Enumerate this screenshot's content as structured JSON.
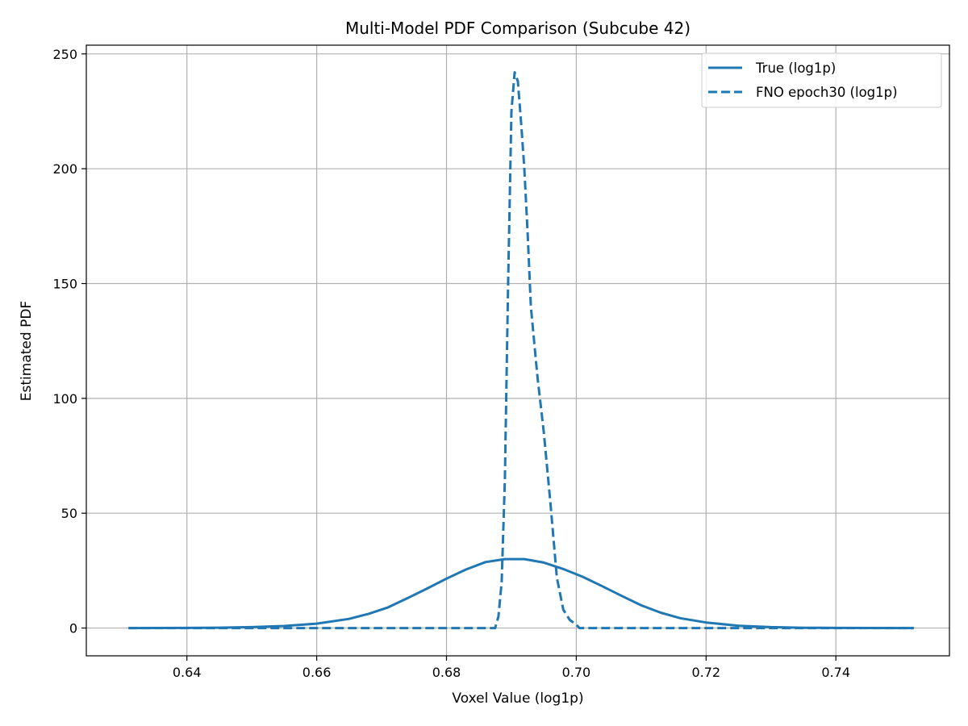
{
  "chart_data": {
    "type": "line",
    "title": "Multi-Model PDF Comparison (Subcube 42)",
    "xlabel": "Voxel Value (log1p)",
    "ylabel": "Estimated PDF",
    "xlim": [
      0.6245,
      0.7575
    ],
    "ylim": [
      -12.1,
      253.8
    ],
    "xticks": [
      0.64,
      0.66,
      0.68,
      0.7,
      0.72,
      0.74
    ],
    "xtick_labels": [
      "0.64",
      "0.66",
      "0.68",
      "0.70",
      "0.72",
      "0.74"
    ],
    "yticks": [
      0,
      50,
      100,
      150,
      200,
      250
    ],
    "ytick_labels": [
      "0",
      "50",
      "100",
      "150",
      "200",
      "250"
    ],
    "grid": true,
    "legend_position": "top-right",
    "line_color": "#1f77b4",
    "series": [
      {
        "name": "True (log1p)",
        "style": "solid",
        "x": [
          0.631,
          0.64,
          0.645,
          0.65,
          0.655,
          0.66,
          0.665,
          0.668,
          0.671,
          0.674,
          0.677,
          0.68,
          0.683,
          0.686,
          0.689,
          0.692,
          0.695,
          0.698,
          0.701,
          0.704,
          0.707,
          0.71,
          0.713,
          0.716,
          0.72,
          0.725,
          0.73,
          0.735,
          0.74,
          0.745,
          0.752
        ],
        "y": [
          0,
          0.05,
          0.15,
          0.4,
          0.9,
          1.9,
          4.0,
          6.2,
          9.0,
          13.0,
          17.2,
          21.5,
          25.5,
          28.7,
          30.0,
          30.0,
          28.5,
          25.7,
          22.3,
          18.2,
          14.0,
          9.9,
          6.7,
          4.3,
          2.4,
          1.0,
          0.4,
          0.12,
          0.04,
          0.01,
          0
        ]
      },
      {
        "name": "FNO epoch30 (log1p)",
        "style": "dashed",
        "x": [
          0.631,
          0.6875,
          0.688,
          0.6885,
          0.689,
          0.6895,
          0.69,
          0.6905,
          0.691,
          0.6915,
          0.692,
          0.6925,
          0.693,
          0.694,
          0.695,
          0.696,
          0.697,
          0.698,
          0.699,
          0.7,
          0.7005,
          0.752
        ],
        "y": [
          0,
          0,
          5,
          20,
          65,
          150,
          225,
          242,
          238,
          220,
          200,
          172,
          140,
          110,
          85,
          55,
          22,
          8,
          3.5,
          1.5,
          0,
          0
        ]
      }
    ]
  }
}
